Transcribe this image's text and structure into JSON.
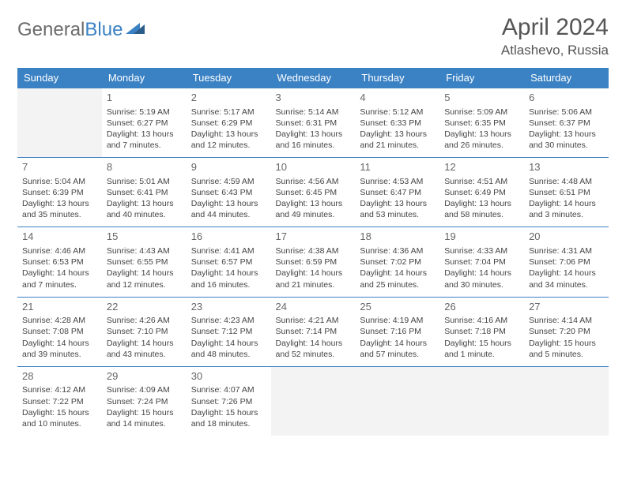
{
  "brand": {
    "part1": "General",
    "part2": "Blue"
  },
  "title": "April 2024",
  "location": "Atlashevo, Russia",
  "colors": {
    "header_bg": "#3b82c4",
    "header_text": "#ffffff",
    "rule": "#3b82c4",
    "empty_bg": "#f3f3f3",
    "text": "#444444",
    "title_text": "#555555"
  },
  "weekdays": [
    "Sunday",
    "Monday",
    "Tuesday",
    "Wednesday",
    "Thursday",
    "Friday",
    "Saturday"
  ],
  "weeks": [
    [
      null,
      {
        "n": "1",
        "sr": "Sunrise: 5:19 AM",
        "ss": "Sunset: 6:27 PM",
        "dl": "Daylight: 13 hours and 7 minutes."
      },
      {
        "n": "2",
        "sr": "Sunrise: 5:17 AM",
        "ss": "Sunset: 6:29 PM",
        "dl": "Daylight: 13 hours and 12 minutes."
      },
      {
        "n": "3",
        "sr": "Sunrise: 5:14 AM",
        "ss": "Sunset: 6:31 PM",
        "dl": "Daylight: 13 hours and 16 minutes."
      },
      {
        "n": "4",
        "sr": "Sunrise: 5:12 AM",
        "ss": "Sunset: 6:33 PM",
        "dl": "Daylight: 13 hours and 21 minutes."
      },
      {
        "n": "5",
        "sr": "Sunrise: 5:09 AM",
        "ss": "Sunset: 6:35 PM",
        "dl": "Daylight: 13 hours and 26 minutes."
      },
      {
        "n": "6",
        "sr": "Sunrise: 5:06 AM",
        "ss": "Sunset: 6:37 PM",
        "dl": "Daylight: 13 hours and 30 minutes."
      }
    ],
    [
      {
        "n": "7",
        "sr": "Sunrise: 5:04 AM",
        "ss": "Sunset: 6:39 PM",
        "dl": "Daylight: 13 hours and 35 minutes."
      },
      {
        "n": "8",
        "sr": "Sunrise: 5:01 AM",
        "ss": "Sunset: 6:41 PM",
        "dl": "Daylight: 13 hours and 40 minutes."
      },
      {
        "n": "9",
        "sr": "Sunrise: 4:59 AM",
        "ss": "Sunset: 6:43 PM",
        "dl": "Daylight: 13 hours and 44 minutes."
      },
      {
        "n": "10",
        "sr": "Sunrise: 4:56 AM",
        "ss": "Sunset: 6:45 PM",
        "dl": "Daylight: 13 hours and 49 minutes."
      },
      {
        "n": "11",
        "sr": "Sunrise: 4:53 AM",
        "ss": "Sunset: 6:47 PM",
        "dl": "Daylight: 13 hours and 53 minutes."
      },
      {
        "n": "12",
        "sr": "Sunrise: 4:51 AM",
        "ss": "Sunset: 6:49 PM",
        "dl": "Daylight: 13 hours and 58 minutes."
      },
      {
        "n": "13",
        "sr": "Sunrise: 4:48 AM",
        "ss": "Sunset: 6:51 PM",
        "dl": "Daylight: 14 hours and 3 minutes."
      }
    ],
    [
      {
        "n": "14",
        "sr": "Sunrise: 4:46 AM",
        "ss": "Sunset: 6:53 PM",
        "dl": "Daylight: 14 hours and 7 minutes."
      },
      {
        "n": "15",
        "sr": "Sunrise: 4:43 AM",
        "ss": "Sunset: 6:55 PM",
        "dl": "Daylight: 14 hours and 12 minutes."
      },
      {
        "n": "16",
        "sr": "Sunrise: 4:41 AM",
        "ss": "Sunset: 6:57 PM",
        "dl": "Daylight: 14 hours and 16 minutes."
      },
      {
        "n": "17",
        "sr": "Sunrise: 4:38 AM",
        "ss": "Sunset: 6:59 PM",
        "dl": "Daylight: 14 hours and 21 minutes."
      },
      {
        "n": "18",
        "sr": "Sunrise: 4:36 AM",
        "ss": "Sunset: 7:02 PM",
        "dl": "Daylight: 14 hours and 25 minutes."
      },
      {
        "n": "19",
        "sr": "Sunrise: 4:33 AM",
        "ss": "Sunset: 7:04 PM",
        "dl": "Daylight: 14 hours and 30 minutes."
      },
      {
        "n": "20",
        "sr": "Sunrise: 4:31 AM",
        "ss": "Sunset: 7:06 PM",
        "dl": "Daylight: 14 hours and 34 minutes."
      }
    ],
    [
      {
        "n": "21",
        "sr": "Sunrise: 4:28 AM",
        "ss": "Sunset: 7:08 PM",
        "dl": "Daylight: 14 hours and 39 minutes."
      },
      {
        "n": "22",
        "sr": "Sunrise: 4:26 AM",
        "ss": "Sunset: 7:10 PM",
        "dl": "Daylight: 14 hours and 43 minutes."
      },
      {
        "n": "23",
        "sr": "Sunrise: 4:23 AM",
        "ss": "Sunset: 7:12 PM",
        "dl": "Daylight: 14 hours and 48 minutes."
      },
      {
        "n": "24",
        "sr": "Sunrise: 4:21 AM",
        "ss": "Sunset: 7:14 PM",
        "dl": "Daylight: 14 hours and 52 minutes."
      },
      {
        "n": "25",
        "sr": "Sunrise: 4:19 AM",
        "ss": "Sunset: 7:16 PM",
        "dl": "Daylight: 14 hours and 57 minutes."
      },
      {
        "n": "26",
        "sr": "Sunrise: 4:16 AM",
        "ss": "Sunset: 7:18 PM",
        "dl": "Daylight: 15 hours and 1 minute."
      },
      {
        "n": "27",
        "sr": "Sunrise: 4:14 AM",
        "ss": "Sunset: 7:20 PM",
        "dl": "Daylight: 15 hours and 5 minutes."
      }
    ],
    [
      {
        "n": "28",
        "sr": "Sunrise: 4:12 AM",
        "ss": "Sunset: 7:22 PM",
        "dl": "Daylight: 15 hours and 10 minutes."
      },
      {
        "n": "29",
        "sr": "Sunrise: 4:09 AM",
        "ss": "Sunset: 7:24 PM",
        "dl": "Daylight: 15 hours and 14 minutes."
      },
      {
        "n": "30",
        "sr": "Sunrise: 4:07 AM",
        "ss": "Sunset: 7:26 PM",
        "dl": "Daylight: 15 hours and 18 minutes."
      },
      null,
      null,
      null,
      null
    ]
  ]
}
